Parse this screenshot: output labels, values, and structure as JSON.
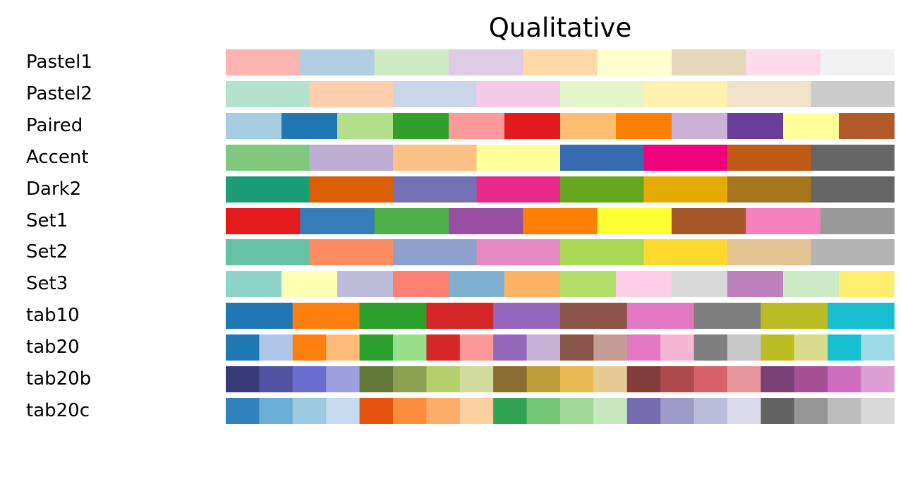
{
  "chart_data": {
    "type": "table",
    "title": "Qualitative",
    "colormaps": [
      {
        "name": "Pastel1",
        "colors": [
          "#fbb4ae",
          "#b3cde3",
          "#ccebc5",
          "#decbe4",
          "#fed9a6",
          "#ffffcc",
          "#e5d8bd",
          "#fddaec",
          "#f2f2f2"
        ]
      },
      {
        "name": "Pastel2",
        "colors": [
          "#b3e2cd",
          "#fdcdac",
          "#cbd5e8",
          "#f4cae4",
          "#e6f5c9",
          "#fff2ae",
          "#f1e2cc",
          "#cccccc"
        ]
      },
      {
        "name": "Paired",
        "colors": [
          "#a6cee3",
          "#1f78b4",
          "#b2df8a",
          "#33a02c",
          "#fb9a99",
          "#e31a1c",
          "#fdbf6f",
          "#ff7f00",
          "#cab2d6",
          "#6a3d9a",
          "#ffff99",
          "#b15928"
        ]
      },
      {
        "name": "Accent",
        "colors": [
          "#7fc97f",
          "#beaed4",
          "#fdc086",
          "#ffff99",
          "#386cb0",
          "#f0027f",
          "#bf5b17",
          "#666666"
        ]
      },
      {
        "name": "Dark2",
        "colors": [
          "#1b9e77",
          "#d95f02",
          "#7570b3",
          "#e7298a",
          "#66a61e",
          "#e6ab02",
          "#a6761d",
          "#666666"
        ]
      },
      {
        "name": "Set1",
        "colors": [
          "#e41a1c",
          "#377eb8",
          "#4daf4a",
          "#984ea3",
          "#ff7f00",
          "#ffff33",
          "#a65628",
          "#f781bf",
          "#999999"
        ]
      },
      {
        "name": "Set2",
        "colors": [
          "#66c2a5",
          "#fc8d62",
          "#8da0cb",
          "#e78ac3",
          "#a6d854",
          "#ffd92f",
          "#e5c494",
          "#b3b3b3"
        ]
      },
      {
        "name": "Set3",
        "colors": [
          "#8dd3c7",
          "#ffffb3",
          "#bebada",
          "#fb8072",
          "#80b1d3",
          "#fdb462",
          "#b3de69",
          "#fccde5",
          "#d9d9d9",
          "#bc80bd",
          "#ccebc5",
          "#ffed6f"
        ]
      },
      {
        "name": "tab10",
        "colors": [
          "#1f77b4",
          "#ff7f0e",
          "#2ca02c",
          "#d62728",
          "#9467bd",
          "#8c564b",
          "#e377c2",
          "#7f7f7f",
          "#bcbd22",
          "#17becf"
        ]
      },
      {
        "name": "tab20",
        "colors": [
          "#1f77b4",
          "#aec7e8",
          "#ff7f0e",
          "#ffbb78",
          "#2ca02c",
          "#98df8a",
          "#d62728",
          "#ff9896",
          "#9467bd",
          "#c5b0d5",
          "#8c564b",
          "#c49c94",
          "#e377c2",
          "#f7b6d2",
          "#7f7f7f",
          "#c7c7c7",
          "#bcbd22",
          "#dbdb8d",
          "#17becf",
          "#9edae5"
        ]
      },
      {
        "name": "tab20b",
        "colors": [
          "#393b79",
          "#5254a3",
          "#6b6ecf",
          "#9c9ede",
          "#637939",
          "#8ca252",
          "#b5cf6b",
          "#cedb9c",
          "#8c6d31",
          "#bd9e39",
          "#e7ba52",
          "#e7cb94",
          "#843c39",
          "#ad494a",
          "#d6616b",
          "#e7969c",
          "#7b4173",
          "#a55194",
          "#ce6dbd",
          "#de9ed6"
        ]
      },
      {
        "name": "tab20c",
        "colors": [
          "#3182bd",
          "#6baed6",
          "#9ecae1",
          "#c6dbef",
          "#e6550d",
          "#fd8d3c",
          "#fdae6b",
          "#fdd0a2",
          "#31a354",
          "#74c476",
          "#a1d99b",
          "#c7e9c0",
          "#756bb1",
          "#9e9ac8",
          "#bcbddc",
          "#dadaeb",
          "#636363",
          "#969696",
          "#bdbdbd",
          "#d9d9d9"
        ]
      }
    ]
  }
}
